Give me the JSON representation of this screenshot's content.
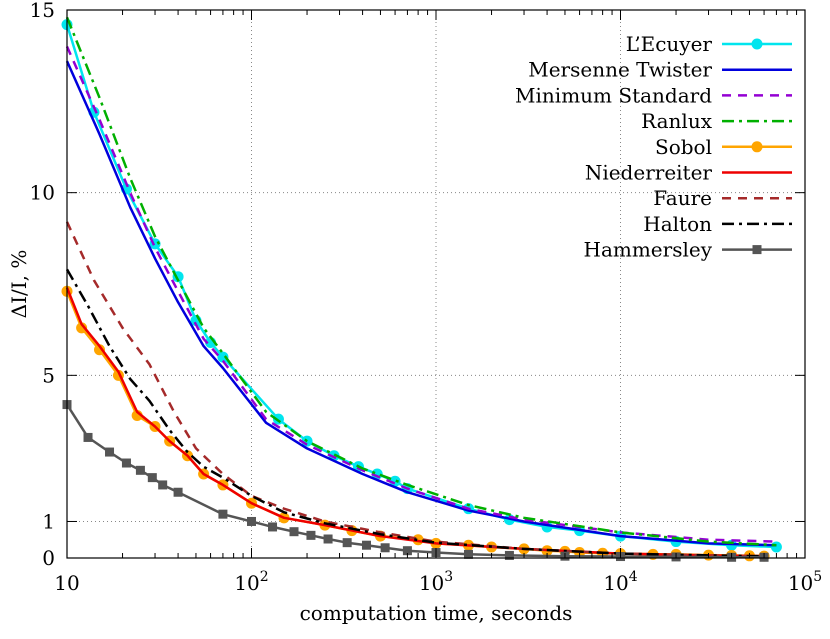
{
  "chart_data": {
    "type": "line",
    "xlabel": "computation time, seconds",
    "ylabel": "ΔI/I, %",
    "xscale": "log",
    "xlim": [
      10,
      100000
    ],
    "ylim": [
      0,
      15
    ],
    "grid": true,
    "legend_position": "top-right",
    "x_ticks": [
      {
        "value": 10,
        "base": "10",
        "exp": ""
      },
      {
        "value": 100,
        "base": "10",
        "exp": "2"
      },
      {
        "value": 1000,
        "base": "10",
        "exp": "3"
      },
      {
        "value": 10000,
        "base": "10",
        "exp": "4"
      },
      {
        "value": 100000,
        "base": "10",
        "exp": "5"
      }
    ],
    "y_ticks": [
      0,
      1,
      5,
      10,
      15
    ],
    "series": [
      {
        "name": "L’Ecuyer",
        "color": "#00e5ee",
        "style": "solid",
        "marker": "circle",
        "x": [
          10,
          14,
          21,
          30,
          40,
          50,
          60,
          70,
          140,
          200,
          280,
          380,
          480,
          600,
          700,
          1500,
          2500,
          4000,
          6000,
          10000,
          20000,
          40000,
          70000
        ],
        "y": [
          14.6,
          12.2,
          10.1,
          8.6,
          7.7,
          6.5,
          5.9,
          5.5,
          3.8,
          3.2,
          2.8,
          2.5,
          2.3,
          2.1,
          1.9,
          1.35,
          1.05,
          0.85,
          0.75,
          0.6,
          0.45,
          0.35,
          0.3
        ]
      },
      {
        "name": "Mersenne Twister",
        "color": "#0000dd",
        "style": "solid",
        "marker": "none",
        "x": [
          10,
          15,
          22,
          30,
          40,
          55,
          70,
          120,
          200,
          400,
          700,
          1500,
          3000,
          10000,
          30000,
          70000
        ],
        "y": [
          13.6,
          11.6,
          9.6,
          8.2,
          7.0,
          5.8,
          5.2,
          3.7,
          3.0,
          2.3,
          1.8,
          1.3,
          1.0,
          0.6,
          0.4,
          0.35
        ]
      },
      {
        "name": "Minimum Standard",
        "color": "#9400d3",
        "style": "dash",
        "marker": "none",
        "x": [
          10,
          15,
          22,
          30,
          40,
          55,
          70,
          120,
          200,
          400,
          700,
          1500,
          3000,
          10000,
          30000,
          70000
        ],
        "y": [
          14.0,
          12.0,
          10.0,
          8.5,
          7.3,
          6.0,
          5.4,
          3.8,
          3.1,
          2.4,
          1.9,
          1.35,
          1.05,
          0.7,
          0.5,
          0.45
        ]
      },
      {
        "name": "Ranlux",
        "color": "#00b000",
        "style": "dashdot",
        "marker": "none",
        "x": [
          10,
          15,
          22,
          30,
          40,
          55,
          70,
          120,
          200,
          400,
          700,
          1500,
          3000,
          10000,
          30000,
          70000
        ],
        "y": [
          14.8,
          12.6,
          10.4,
          8.8,
          7.6,
          6.3,
          5.6,
          4.0,
          3.2,
          2.45,
          2.0,
          1.45,
          1.1,
          0.7,
          0.45,
          0.35
        ]
      },
      {
        "name": "Sobol",
        "color": "#ffa500",
        "style": "solid",
        "marker": "circle",
        "x": [
          10,
          12,
          15,
          19,
          24,
          30,
          36,
          45,
          55,
          70,
          100,
          150,
          250,
          350,
          500,
          800,
          1000,
          1500,
          2000,
          3000,
          4000,
          5000,
          6000,
          8000,
          10000,
          15000,
          20000,
          30000,
          40000,
          50000,
          60000
        ],
        "y": [
          7.3,
          6.3,
          5.7,
          5.0,
          3.9,
          3.6,
          3.2,
          2.8,
          2.3,
          2.0,
          1.5,
          1.1,
          0.9,
          0.75,
          0.6,
          0.5,
          0.4,
          0.35,
          0.3,
          0.25,
          0.2,
          0.18,
          0.15,
          0.13,
          0.12,
          0.1,
          0.1,
          0.08,
          0.07,
          0.06,
          0.05
        ]
      },
      {
        "name": "Niederreiter",
        "color": "#ee0000",
        "style": "solid",
        "marker": "none",
        "x": [
          10,
          12,
          15,
          19,
          24,
          30,
          36,
          45,
          55,
          70,
          100,
          150,
          250,
          500,
          1000,
          3000,
          10000,
          30000,
          60000
        ],
        "y": [
          7.4,
          6.4,
          5.8,
          5.1,
          4.0,
          3.6,
          3.2,
          2.8,
          2.3,
          2.0,
          1.5,
          1.1,
          0.9,
          0.6,
          0.4,
          0.25,
          0.12,
          0.07,
          0.05
        ]
      },
      {
        "name": "Faure",
        "color": "#a52a2a",
        "style": "dash",
        "marker": "none",
        "x": [
          10,
          14,
          20,
          28,
          38,
          50,
          70,
          100,
          150,
          250,
          500,
          1000,
          3000,
          10000,
          30000,
          60000
        ],
        "y": [
          9.2,
          7.6,
          6.3,
          5.3,
          4.0,
          3.0,
          2.3,
          1.7,
          1.35,
          1.0,
          0.7,
          0.45,
          0.25,
          0.12,
          0.07,
          0.05
        ]
      },
      {
        "name": "Halton",
        "color": "#000000",
        "style": "dashdot",
        "marker": "none",
        "x": [
          10,
          13,
          17,
          22,
          28,
          36,
          45,
          55,
          70,
          100,
          150,
          250,
          500,
          1000,
          3000,
          10000,
          30000,
          60000
        ],
        "y": [
          7.9,
          6.9,
          5.8,
          4.9,
          4.3,
          3.5,
          2.9,
          2.5,
          2.2,
          1.7,
          1.25,
          0.95,
          0.65,
          0.42,
          0.25,
          0.12,
          0.07,
          0.05
        ]
      },
      {
        "name": "Hammersley",
        "color": "#555555",
        "style": "solid",
        "marker": "square",
        "x": [
          10,
          13,
          17,
          21,
          25,
          29,
          33,
          40,
          70,
          100,
          130,
          170,
          210,
          260,
          330,
          420,
          530,
          700,
          1000,
          1500,
          2500,
          5000,
          10000,
          20000,
          40000,
          60000
        ],
        "y": [
          4.2,
          3.3,
          2.9,
          2.6,
          2.4,
          2.2,
          2.0,
          1.8,
          1.2,
          1.0,
          0.85,
          0.72,
          0.62,
          0.52,
          0.42,
          0.35,
          0.28,
          0.2,
          0.15,
          0.1,
          0.07,
          0.05,
          0.04,
          0.03,
          0.02,
          0.02
        ]
      }
    ]
  }
}
